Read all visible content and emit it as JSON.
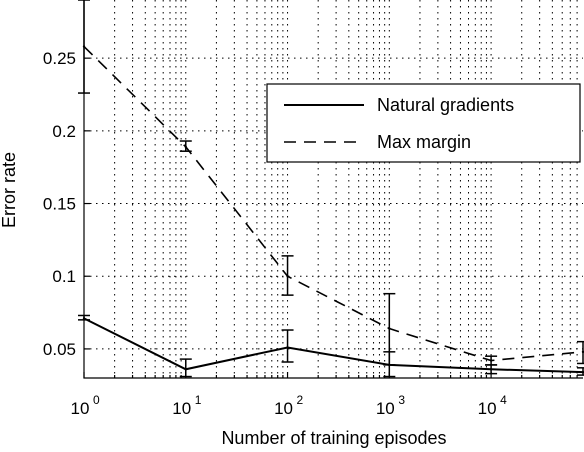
{
  "chart_data": {
    "type": "line",
    "title": "",
    "xlabel": "Number of training episodes",
    "ylabel": "Error rate",
    "x_scale": "log",
    "y_scale": "linear",
    "xlim": [
      1,
      80000
    ],
    "ylim": [
      0.03,
      0.29
    ],
    "grid": true,
    "legend_position": "top-right",
    "x_ticks": [
      {
        "value": 1,
        "base": "10",
        "exponent": "0"
      },
      {
        "value": 10,
        "base": "10",
        "exponent": "1"
      },
      {
        "value": 100,
        "base": "10",
        "exponent": "2"
      },
      {
        "value": 1000,
        "base": "10",
        "exponent": "3"
      },
      {
        "value": 10000,
        "base": "10",
        "exponent": "4"
      }
    ],
    "y_ticks": [
      {
        "value": 0.05,
        "label": "0.05"
      },
      {
        "value": 0.1,
        "label": "0.1"
      },
      {
        "value": 0.15,
        "label": "0.15"
      },
      {
        "value": 0.2,
        "label": "0.2"
      },
      {
        "value": 0.25,
        "label": "0.25"
      }
    ],
    "x": [
      1,
      10,
      100,
      1000,
      10000,
      80000
    ],
    "series": [
      {
        "name": "Natural gradients",
        "style": "solid",
        "color": "#000000",
        "values": [
          0.071,
          0.036,
          0.051,
          0.039,
          0.036,
          0.034
        ],
        "err_low": [
          0.07,
          0.031,
          0.041,
          0.031,
          0.033,
          0.032
        ],
        "err_high": [
          0.073,
          0.043,
          0.063,
          0.048,
          0.039,
          0.037
        ]
      },
      {
        "name": "Max margin",
        "style": "dashed",
        "color": "#000000",
        "values": [
          0.258,
          0.189,
          0.1,
          0.064,
          0.042,
          0.048
        ],
        "err_low": [
          0.226,
          0.186,
          0.087,
          0.039,
          0.039,
          0.04
        ],
        "err_high": [
          0.29,
          0.193,
          0.114,
          0.088,
          0.045,
          0.055
        ]
      }
    ]
  }
}
